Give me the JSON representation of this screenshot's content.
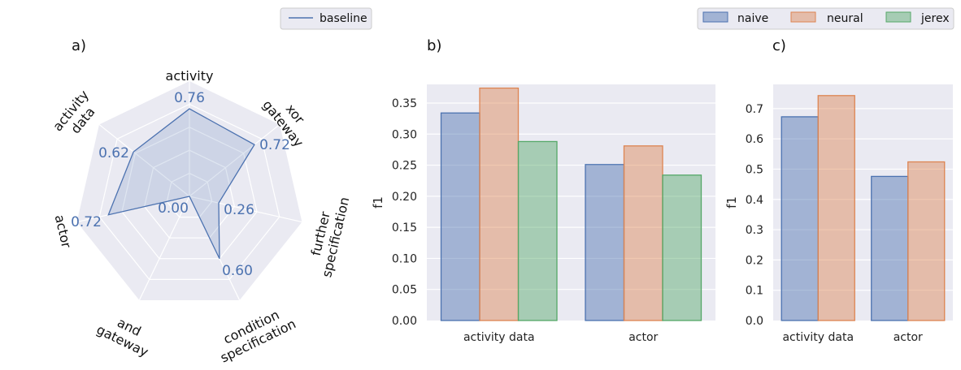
{
  "figure": {
    "panels": {
      "a": "a)",
      "b": "b)",
      "c": "c)"
    },
    "legend_left": {
      "entries": [
        {
          "label": "baseline",
          "color": "#4c72b0",
          "kind": "line"
        }
      ]
    },
    "legend_right": {
      "entries": [
        {
          "label": "naive",
          "color": "#4c72b0"
        },
        {
          "label": "neural",
          "color": "#dd8452"
        },
        {
          "label": "jerex",
          "color": "#55a868"
        }
      ]
    }
  },
  "chart_data": [
    {
      "id": "a",
      "type": "radar",
      "axes": [
        "activity",
        "xor gateway",
        "further specification",
        "condition specification",
        "and gateway",
        "actor",
        "activity data"
      ],
      "series": [
        {
          "name": "baseline",
          "values": [
            0.76,
            0.72,
            0.26,
            0.6,
            0.0,
            0.72,
            0.62
          ],
          "color": "#4c72b0"
        }
      ],
      "value_labels": [
        "0.76",
        "0.72",
        "0.26",
        "0.60",
        "0.00",
        "0.72",
        "0.62"
      ],
      "rlim": [
        0,
        1
      ],
      "grid": true
    },
    {
      "id": "b",
      "type": "bar",
      "categories": [
        "activity data",
        "actor"
      ],
      "series": [
        {
          "name": "naive",
          "values": [
            0.334,
            0.251
          ],
          "color": "#4c72b0"
        },
        {
          "name": "neural",
          "values": [
            0.374,
            0.281
          ],
          "color": "#dd8452"
        },
        {
          "name": "jerex",
          "values": [
            0.288,
            0.234
          ],
          "color": "#55a868"
        }
      ],
      "ylabel": "f1",
      "ylim": [
        0,
        0.38
      ],
      "yticks": [
        "0.00",
        "0.05",
        "0.10",
        "0.15",
        "0.20",
        "0.25",
        "0.30",
        "0.35"
      ],
      "grid": true
    },
    {
      "id": "c",
      "type": "bar",
      "categories": [
        "activity data",
        "actor"
      ],
      "series": [
        {
          "name": "naive",
          "values": [
            0.673,
            0.476
          ],
          "color": "#4c72b0"
        },
        {
          "name": "neural",
          "values": [
            0.743,
            0.524
          ],
          "color": "#dd8452"
        }
      ],
      "ylabel": "f1",
      "ylim": [
        0,
        0.78
      ],
      "yticks": [
        "0.0",
        "0.1",
        "0.2",
        "0.3",
        "0.4",
        "0.5",
        "0.6",
        "0.7"
      ],
      "grid": true
    }
  ]
}
